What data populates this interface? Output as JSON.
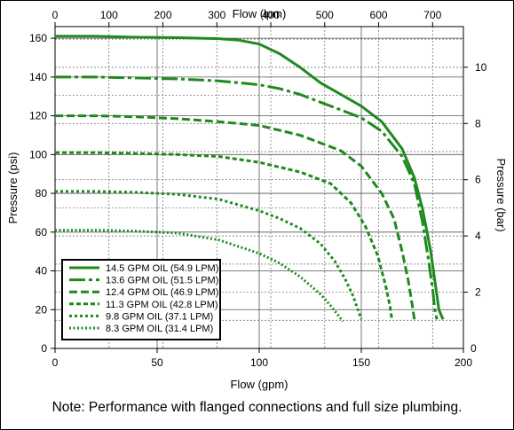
{
  "chart_data": {
    "type": "line",
    "title": "",
    "x_top_label": "Flow (lpm)",
    "x_bottom_label": "Flow (gpm)",
    "y_left_label": "Pressure (psi)",
    "y_right_label": "Pressure (bar)",
    "x_top_ticks": [
      0,
      100,
      200,
      300,
      400,
      500,
      600,
      700
    ],
    "x_bottom_ticks": [
      0,
      50,
      100,
      150,
      200
    ],
    "y_left_ticks": [
      0,
      20,
      40,
      60,
      80,
      100,
      120,
      140,
      160
    ],
    "y_right_ticks": [
      2,
      4,
      6,
      8,
      10
    ],
    "xlim_gpm": [
      0,
      200
    ],
    "ylim_psi": [
      0,
      166
    ],
    "grid": true,
    "legend_position": "bottom-left",
    "color": "#1e8a1e",
    "series": [
      {
        "name": "14.5 GPM OIL (54.9 LPM)",
        "dash": "solid",
        "x": [
          0,
          20,
          40,
          60,
          80,
          90,
          100,
          110,
          120,
          130,
          140,
          150,
          160,
          170,
          176,
          180,
          184,
          186,
          188,
          190
        ],
        "y": [
          161,
          161,
          160.5,
          160.3,
          159.8,
          159,
          157,
          152,
          145,
          137,
          131,
          125,
          117,
          103,
          88,
          72,
          50,
          35,
          20,
          15
        ]
      },
      {
        "name": "13.6 GPM OIL (51.5 LPM)",
        "dash": "longdash",
        "x": [
          0,
          20,
          40,
          60,
          80,
          100,
          110,
          120,
          130,
          140,
          150,
          160,
          170,
          176,
          180,
          183,
          185,
          186,
          187
        ],
        "y": [
          140,
          140,
          139.5,
          139,
          138,
          136,
          134,
          131,
          127,
          123,
          119,
          112,
          99,
          85,
          65,
          45,
          30,
          20,
          15
        ]
      },
      {
        "name": "12.4 GPM OIL (46.9 LPM)",
        "dash": "medium",
        "x": [
          0,
          20,
          40,
          60,
          80,
          100,
          120,
          140,
          150,
          160,
          166,
          170,
          173,
          175,
          176
        ],
        "y": [
          120,
          120,
          119.5,
          118.5,
          117,
          115,
          110,
          102,
          94,
          80,
          67,
          50,
          35,
          22,
          15
        ]
      },
      {
        "name": "11.3 GPM OIL (42.8 LPM)",
        "dash": "short",
        "x": [
          0,
          20,
          40,
          60,
          80,
          100,
          120,
          135,
          145,
          152,
          158,
          162,
          164,
          165
        ],
        "y": [
          101,
          101,
          100.5,
          100,
          99,
          96,
          91,
          85,
          75,
          63,
          48,
          32,
          22,
          15
        ]
      },
      {
        "name": "9.8 GPM OIL (37.1 LPM)",
        "dash": "dotted",
        "x": [
          0,
          20,
          40,
          60,
          80,
          100,
          110,
          120,
          130,
          137,
          142,
          146,
          148,
          150
        ],
        "y": [
          81,
          81,
          80.5,
          79.5,
          77,
          71,
          67,
          62,
          54,
          45,
          36,
          27,
          21,
          15
        ]
      },
      {
        "name": "8.3 GPM OIL (31.4 LPM)",
        "dash": "finedot",
        "x": [
          0,
          20,
          40,
          60,
          80,
          100,
          110,
          120,
          130,
          135,
          138,
          141
        ],
        "y": [
          61,
          61,
          60.5,
          59.5,
          56,
          49,
          44,
          37,
          28,
          22,
          18,
          14
        ]
      }
    ]
  },
  "note": "Note:  Performance with flanged connections and full size plumbing."
}
